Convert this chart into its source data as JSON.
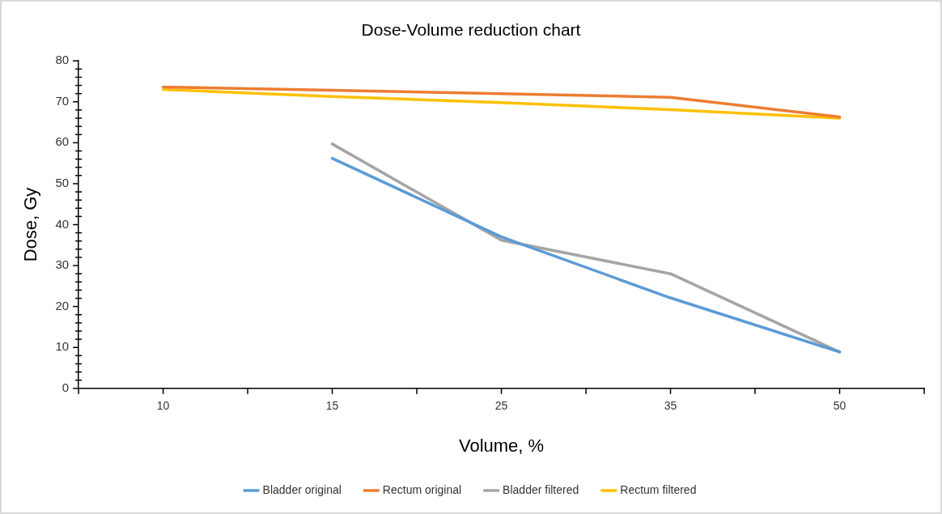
{
  "chart_data": {
    "type": "line",
    "title": "Dose-Volume reduction chart",
    "xlabel": "Volume, %",
    "ylabel": "Dose, Gy",
    "categories": [
      "10",
      "15",
      "25",
      "35",
      "50"
    ],
    "series": [
      {
        "name": "Bladder original",
        "color": "#5b9bd5",
        "values": [
          null,
          56.2,
          37.0,
          22.1,
          8.9
        ]
      },
      {
        "name": "Rectum original",
        "color": "#ed7d31",
        "values": [
          73.6,
          72.8,
          72.0,
          71.1,
          66.3
        ]
      },
      {
        "name": "Bladder filtered",
        "color": "#a5a5a5",
        "values": [
          null,
          59.7,
          36.2,
          28.0,
          8.9
        ]
      },
      {
        "name": "Rectum filtered",
        "color": "#ffc000",
        "values": [
          73.0,
          71.3,
          69.8,
          68.1,
          66.0
        ]
      }
    ],
    "ylim": [
      0,
      80
    ],
    "yticks": [
      0,
      {
        "value": 2,
        "label": null
      },
      {
        "value": 4,
        "label": null
      },
      {
        "value": 6,
        "label": null
      },
      {
        "value": 8,
        "label": null
      },
      10,
      {
        "value": 12,
        "label": null
      },
      {
        "value": 14,
        "label": null
      },
      {
        "value": 16,
        "label": null
      },
      {
        "value": 18,
        "label": null
      },
      20,
      {
        "value": 22,
        "label": null
      },
      {
        "value": 24,
        "label": null
      },
      {
        "value": 26,
        "label": null
      },
      {
        "value": 28,
        "label": null
      },
      30,
      {
        "value": 32,
        "label": null
      },
      {
        "value": 34,
        "label": null
      },
      {
        "value": 36,
        "label": null
      },
      {
        "value": 38,
        "label": null
      },
      40,
      {
        "value": 42,
        "label": null
      },
      {
        "value": 44,
        "label": null
      },
      {
        "value": 46,
        "label": null
      },
      {
        "value": 48,
        "label": null
      },
      50,
      {
        "value": 52,
        "label": null
      },
      {
        "value": 54,
        "label": null
      },
      {
        "value": 56,
        "label": null
      },
      {
        "value": 58,
        "label": null
      },
      60,
      {
        "value": 62,
        "label": null
      },
      {
        "value": 64,
        "label": null
      },
      {
        "value": 66,
        "label": null
      },
      {
        "value": 68,
        "label": null
      },
      70,
      {
        "value": 72,
        "label": null
      },
      {
        "value": 74,
        "label": null
      },
      {
        "value": 76,
        "label": null
      },
      {
        "value": 78,
        "label": null
      },
      80
    ],
    "grid": false,
    "legend": "bottom",
    "marker": "none",
    "line_style": "solid"
  }
}
